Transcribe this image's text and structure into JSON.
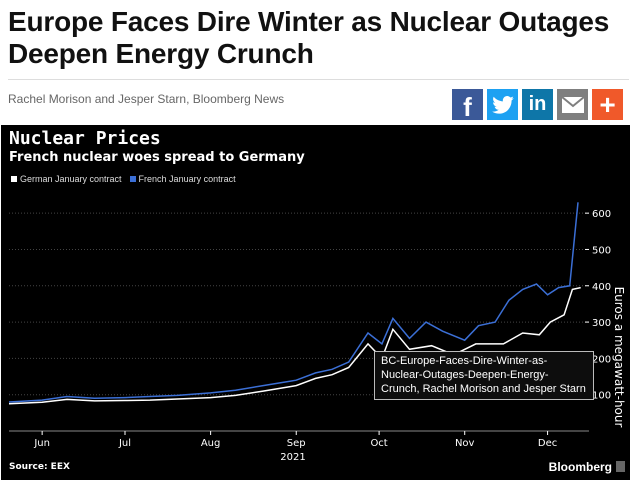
{
  "article": {
    "headline": "Europe Faces Dire Winter as Nuclear Outages Deepen Energy Crunch",
    "byline": "Rachel Morison and Jesper Starn, Bloomberg News"
  },
  "share": [
    {
      "name": "facebook",
      "glyph": "f",
      "color": "#3b5998"
    },
    {
      "name": "twitter",
      "glyph": "🐦",
      "color": "#1da1f2"
    },
    {
      "name": "linkedin",
      "glyph": "in",
      "color": "#0e76a8"
    },
    {
      "name": "email",
      "glyph": "✉",
      "color": "#7f7f7f"
    },
    {
      "name": "more",
      "glyph": "+",
      "color": "#f0592a"
    }
  ],
  "chart_data": {
    "type": "line",
    "title": "Nuclear Prices",
    "subtitle": "French nuclear woes spread to Germany",
    "ylabel": "Euros a megawatt-hour",
    "ylim": [
      0,
      650
    ],
    "yticks": [
      100,
      200,
      300,
      400,
      500,
      600
    ],
    "xlim": [
      "2021-05-20",
      "2021-12-16"
    ],
    "xticks": [
      {
        "date": "2021-06-01",
        "label": "Jun"
      },
      {
        "date": "2021-07-01",
        "label": "Jul"
      },
      {
        "date": "2021-08-01",
        "label": "Aug"
      },
      {
        "date": "2021-09-01",
        "label": "Sep"
      },
      {
        "date": "2021-10-01",
        "label": "Oct"
      },
      {
        "date": "2021-11-01",
        "label": "Nov"
      },
      {
        "date": "2021-12-01",
        "label": "Dec"
      }
    ],
    "year_label": "2021",
    "series": [
      {
        "name": "German January contract",
        "color": "#ffffff",
        "points": [
          [
            "2021-05-20",
            75
          ],
          [
            "2021-06-01",
            79
          ],
          [
            "2021-06-10",
            87
          ],
          [
            "2021-06-20",
            83
          ],
          [
            "2021-07-01",
            84
          ],
          [
            "2021-07-10",
            85
          ],
          [
            "2021-07-20",
            88
          ],
          [
            "2021-08-01",
            92
          ],
          [
            "2021-08-10",
            98
          ],
          [
            "2021-08-20",
            110
          ],
          [
            "2021-09-01",
            125
          ],
          [
            "2021-09-08",
            145
          ],
          [
            "2021-09-14",
            155
          ],
          [
            "2021-09-20",
            175
          ],
          [
            "2021-09-27",
            240
          ],
          [
            "2021-10-02",
            200
          ],
          [
            "2021-10-06",
            280
          ],
          [
            "2021-10-12",
            225
          ],
          [
            "2021-10-20",
            235
          ],
          [
            "2021-10-28",
            210
          ],
          [
            "2021-11-05",
            240
          ],
          [
            "2021-11-15",
            240
          ],
          [
            "2021-11-22",
            270
          ],
          [
            "2021-11-28",
            265
          ],
          [
            "2021-12-02",
            300
          ],
          [
            "2021-12-07",
            320
          ],
          [
            "2021-12-10",
            390
          ],
          [
            "2021-12-13",
            395
          ]
        ]
      },
      {
        "name": "French January contract",
        "color": "#3b6fd6",
        "points": [
          [
            "2021-05-20",
            80
          ],
          [
            "2021-06-01",
            85
          ],
          [
            "2021-06-10",
            95
          ],
          [
            "2021-06-20",
            90
          ],
          [
            "2021-07-01",
            92
          ],
          [
            "2021-07-10",
            95
          ],
          [
            "2021-07-20",
            98
          ],
          [
            "2021-08-01",
            105
          ],
          [
            "2021-08-10",
            112
          ],
          [
            "2021-08-20",
            125
          ],
          [
            "2021-09-01",
            140
          ],
          [
            "2021-09-08",
            160
          ],
          [
            "2021-09-14",
            170
          ],
          [
            "2021-09-20",
            190
          ],
          [
            "2021-09-27",
            270
          ],
          [
            "2021-10-02",
            240
          ],
          [
            "2021-10-06",
            310
          ],
          [
            "2021-10-12",
            255
          ],
          [
            "2021-10-18",
            300
          ],
          [
            "2021-10-24",
            275
          ],
          [
            "2021-11-01",
            250
          ],
          [
            "2021-11-06",
            290
          ],
          [
            "2021-11-12",
            300
          ],
          [
            "2021-11-17",
            360
          ],
          [
            "2021-11-22",
            390
          ],
          [
            "2021-11-27",
            405
          ],
          [
            "2021-12-01",
            375
          ],
          [
            "2021-12-05",
            395
          ],
          [
            "2021-12-09",
            400
          ],
          [
            "2021-12-12",
            630
          ]
        ]
      }
    ],
    "source": "Source: EEX",
    "brand": "Bloomberg"
  },
  "tooltip": {
    "text": "BC-Europe-Faces-Dire-Winter-as-Nuclear-Outages-Deepen-Energy-Crunch, Rachel Morison and Jesper Starn"
  }
}
